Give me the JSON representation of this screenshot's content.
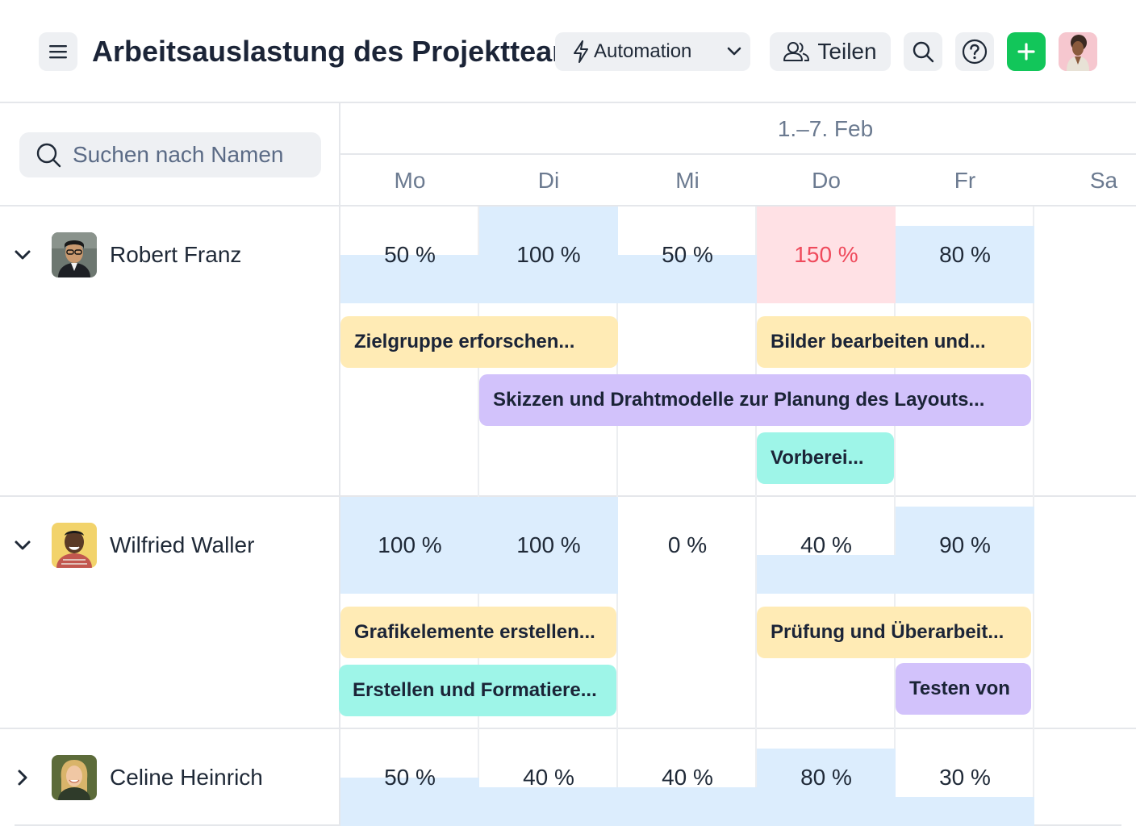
{
  "header": {
    "title": "Arbeitsauslastung des Projektteams",
    "automation_label": "Automation",
    "share_label": "Teilen",
    "accent_color": "#12c65a"
  },
  "search": {
    "placeholder": "Suchen nach Namen"
  },
  "calendar": {
    "week_label": "1.–7. Feb",
    "days": [
      "Mo",
      "Di",
      "Mi",
      "Do",
      "Fr",
      "Sa"
    ]
  },
  "people": [
    {
      "name": "Robert Franz",
      "expanded": true,
      "avatar": "avatar-robert",
      "loads": [
        {
          "label": "50 %",
          "value": 50
        },
        {
          "label": "100 %",
          "value": 100
        },
        {
          "label": "50 %",
          "value": 50
        },
        {
          "label": "150 %",
          "value": 150
        },
        {
          "label": "80 %",
          "value": 80
        }
      ],
      "tasks": [
        {
          "title": "Zielgruppe erforschen...",
          "color": "yellow"
        },
        {
          "title": "Bilder bearbeiten und...",
          "color": "yellow"
        },
        {
          "title": "Skizzen und Drahtmodelle zur Planung des Layouts...",
          "color": "purple"
        },
        {
          "title": "Vorberei...",
          "color": "teal"
        }
      ]
    },
    {
      "name": "Wilfried Waller",
      "expanded": true,
      "avatar": "avatar-wilfried",
      "loads": [
        {
          "label": "100 %",
          "value": 100
        },
        {
          "label": "100 %",
          "value": 100
        },
        {
          "label": "0 %",
          "value": 0
        },
        {
          "label": "40 %",
          "value": 40
        },
        {
          "label": "90 %",
          "value": 90
        }
      ],
      "tasks": [
        {
          "title": "Grafikelemente erstellen...",
          "color": "yellow"
        },
        {
          "title": "Prüfung und Überarbeit...",
          "color": "yellow"
        },
        {
          "title": "Erstellen und Formatiere...",
          "color": "teal"
        },
        {
          "title": "Testen von",
          "color": "purple"
        }
      ]
    },
    {
      "name": "Celine Heinrich",
      "expanded": false,
      "avatar": "avatar-celine",
      "loads": [
        {
          "label": "50 %",
          "value": 50
        },
        {
          "label": "40 %",
          "value": 40
        },
        {
          "label": "40 %",
          "value": 40
        },
        {
          "label": "80 %",
          "value": 80
        },
        {
          "label": "30 %",
          "value": 30
        }
      ],
      "tasks": []
    }
  ],
  "colors": {
    "load_fill": "#dcedfd",
    "overload_fill": "#ffe1e5",
    "overload_text": "#ef4a5c",
    "task_yellow": "#ffebb5",
    "task_purple": "#d2c2fb",
    "task_teal": "#9ef5e8"
  }
}
